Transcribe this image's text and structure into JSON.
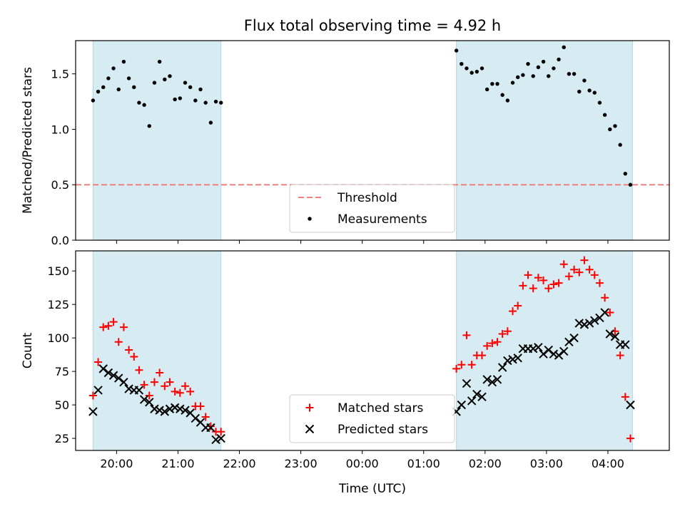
{
  "figure": {
    "title": "Flux total observing time = 4.92 h",
    "xlabel": "Time (UTC)"
  },
  "colors": {
    "shade": "#add8e6",
    "threshold": "#f08080",
    "matched": "#ff0000",
    "predicted": "#000000",
    "measurement": "#000000"
  },
  "chart_data": [
    {
      "type": "scatter",
      "panel": "top",
      "ylabel": "Matched/Predicted stars",
      "ylim": [
        0,
        1.8
      ],
      "yticks": [
        0.0,
        0.5,
        1.0,
        1.5
      ],
      "ytick_labels": [
        "0.0",
        "0.5",
        "1.0",
        "1.5"
      ],
      "xlim": [
        "19:20",
        "05:00"
      ],
      "shaded_spans": [
        [
          "19:37",
          "21:42"
        ],
        [
          "01:32",
          "04:24"
        ]
      ],
      "threshold": {
        "name": "Threshold",
        "value": 0.5
      },
      "legend": {
        "placement": "lower center",
        "entries": [
          "Threshold",
          "Measurements"
        ]
      },
      "series": [
        {
          "name": "Measurements",
          "x": [
            "19:37",
            "19:42",
            "19:47",
            "19:52",
            "19:57",
            "20:02",
            "20:07",
            "20:12",
            "20:17",
            "20:22",
            "20:27",
            "20:32",
            "20:37",
            "20:42",
            "20:47",
            "20:52",
            "20:57",
            "21:02",
            "21:07",
            "21:12",
            "21:17",
            "21:22",
            "21:27",
            "21:32",
            "21:37",
            "21:42",
            "01:32",
            "01:37",
            "01:42",
            "01:47",
            "01:52",
            "01:57",
            "02:02",
            "02:07",
            "02:12",
            "02:17",
            "02:22",
            "02:27",
            "02:32",
            "02:37",
            "02:42",
            "02:47",
            "02:52",
            "02:57",
            "03:02",
            "03:07",
            "03:12",
            "03:17",
            "03:22",
            "03:27",
            "03:32",
            "03:37",
            "03:42",
            "03:47",
            "03:52",
            "03:57",
            "04:02",
            "04:07",
            "04:12",
            "04:17",
            "04:22"
          ],
          "y": [
            1.26,
            1.34,
            1.38,
            1.46,
            1.55,
            1.36,
            1.61,
            1.46,
            1.38,
            1.24,
            1.22,
            1.03,
            1.42,
            1.61,
            1.45,
            1.48,
            1.27,
            1.28,
            1.42,
            1.38,
            1.26,
            1.36,
            1.24,
            1.06,
            1.25,
            1.24,
            1.71,
            1.59,
            1.55,
            1.51,
            1.52,
            1.55,
            1.36,
            1.41,
            1.41,
            1.31,
            1.26,
            1.42,
            1.47,
            1.49,
            1.59,
            1.48,
            1.56,
            1.61,
            1.48,
            1.55,
            1.63,
            1.74,
            1.5,
            1.5,
            1.34,
            1.44,
            1.35,
            1.33,
            1.24,
            1.13,
            1.0,
            1.03,
            0.86,
            0.6,
            0.5
          ]
        }
      ]
    },
    {
      "type": "scatter",
      "panel": "bottom",
      "ylabel": "Count",
      "ylim": [
        16,
        165
      ],
      "yticks": [
        25,
        50,
        75,
        100,
        125,
        150
      ],
      "ytick_labels": [
        "25",
        "50",
        "75",
        "100",
        "125",
        "150"
      ],
      "xlim": [
        "19:20",
        "05:00"
      ],
      "xticks": [
        "20:00",
        "21:00",
        "22:00",
        "23:00",
        "00:00",
        "01:00",
        "02:00",
        "03:00",
        "04:00"
      ],
      "xtick_labels": [
        "20:00",
        "21:00",
        "22:00",
        "23:00",
        "00:00",
        "01:00",
        "02:00",
        "03:00",
        "04:00"
      ],
      "shaded_spans": [
        [
          "19:37",
          "21:42"
        ],
        [
          "01:32",
          "04:24"
        ]
      ],
      "legend": {
        "placement": "lower center",
        "entries": [
          "Matched stars",
          "Predicted stars"
        ]
      },
      "series": [
        {
          "name": "Matched stars",
          "x": [
            "19:37",
            "19:42",
            "19:47",
            "19:52",
            "19:57",
            "20:02",
            "20:07",
            "20:12",
            "20:17",
            "20:22",
            "20:27",
            "20:32",
            "20:37",
            "20:42",
            "20:47",
            "20:52",
            "20:57",
            "21:02",
            "21:07",
            "21:12",
            "21:17",
            "21:22",
            "21:27",
            "21:32",
            "21:37",
            "21:42",
            "01:32",
            "01:37",
            "01:42",
            "01:47",
            "01:52",
            "01:57",
            "02:02",
            "02:07",
            "02:12",
            "02:17",
            "02:22",
            "02:27",
            "02:32",
            "02:37",
            "02:42",
            "02:47",
            "02:52",
            "02:57",
            "03:02",
            "03:07",
            "03:12",
            "03:17",
            "03:22",
            "03:27",
            "03:32",
            "03:37",
            "03:42",
            "03:47",
            "03:52",
            "03:57",
            "04:02",
            "04:07",
            "04:12",
            "04:17",
            "04:22"
          ],
          "y": [
            57,
            82,
            108,
            109,
            112,
            97,
            108,
            91,
            86,
            76,
            65,
            57,
            67,
            74,
            64,
            67,
            60,
            59,
            64,
            60,
            49,
            49,
            41,
            34,
            30,
            30,
            77,
            80,
            102,
            80,
            87,
            87,
            94,
            96,
            97,
            103,
            105,
            120,
            124,
            139,
            147,
            137,
            145,
            143,
            137,
            140,
            141,
            155,
            146,
            151,
            149,
            158,
            151,
            147,
            141,
            130,
            119,
            105,
            87,
            56,
            25
          ]
        },
        {
          "name": "Predicted stars",
          "x": [
            "19:37",
            "19:42",
            "19:47",
            "19:52",
            "19:57",
            "20:02",
            "20:07",
            "20:12",
            "20:17",
            "20:22",
            "20:27",
            "20:32",
            "20:37",
            "20:42",
            "20:47",
            "20:52",
            "20:57",
            "21:02",
            "21:07",
            "21:12",
            "21:17",
            "21:22",
            "21:27",
            "21:32",
            "21:37",
            "21:42",
            "01:32",
            "01:37",
            "01:42",
            "01:47",
            "01:52",
            "01:57",
            "02:02",
            "02:07",
            "02:12",
            "02:17",
            "02:22",
            "02:27",
            "02:32",
            "02:37",
            "02:42",
            "02:47",
            "02:52",
            "02:57",
            "03:02",
            "03:07",
            "03:12",
            "03:17",
            "03:22",
            "03:27",
            "03:32",
            "03:37",
            "03:42",
            "03:47",
            "03:52",
            "03:57",
            "04:02",
            "04:07",
            "04:12",
            "04:17",
            "04:22"
          ],
          "y": [
            45,
            61,
            77,
            74,
            72,
            70,
            67,
            62,
            61,
            61,
            54,
            52,
            47,
            46,
            45,
            47,
            48,
            47,
            46,
            44,
            40,
            37,
            33,
            33,
            24,
            25,
            45,
            50,
            66,
            53,
            58,
            56,
            69,
            67,
            69,
            78,
            83,
            84,
            85,
            92,
            92,
            92,
            93,
            88,
            91,
            88,
            87,
            90,
            97,
            100,
            111,
            110,
            111,
            113,
            115,
            119,
            103,
            101,
            95,
            95,
            50
          ]
        }
      ]
    }
  ]
}
